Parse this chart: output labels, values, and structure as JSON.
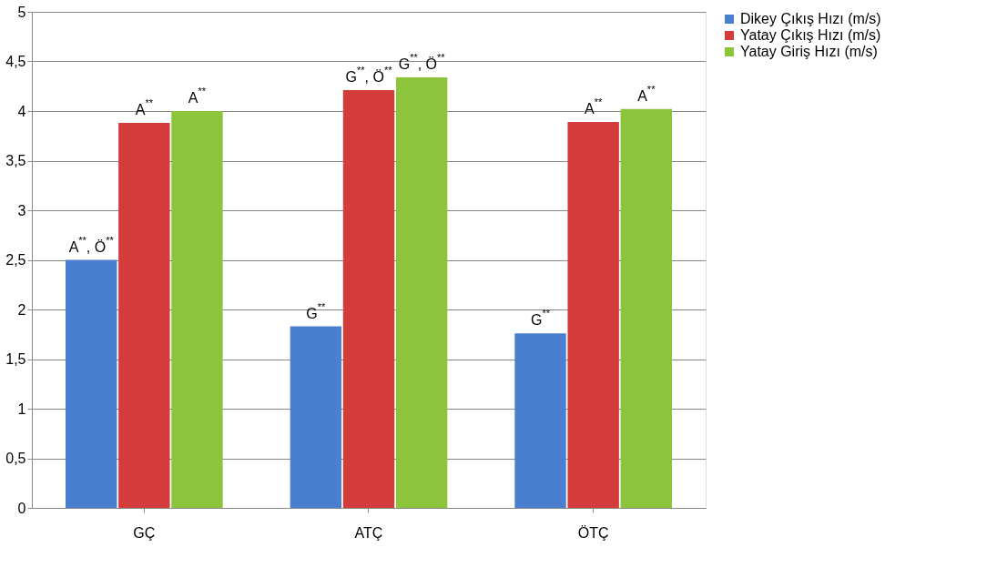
{
  "chart_data": {
    "type": "bar",
    "categories": [
      "GÇ",
      "ATÇ",
      "ÖTÇ"
    ],
    "series": [
      {
        "name": "Dikey Çıkış Hızı (m/s)",
        "color": "#4a7fd0",
        "values": [
          2.5,
          1.83,
          1.76
        ]
      },
      {
        "name": "Yatay Çıkış Hızı (m/s)",
        "color": "#d43c3c",
        "values": [
          3.88,
          4.21,
          3.89
        ]
      },
      {
        "name": "Yatay Giriş Hızı (m/s)",
        "color": "#8cc43c",
        "values": [
          4.0,
          4.34,
          4.02
        ]
      }
    ],
    "ylim": [
      0,
      5
    ],
    "yticks": [
      0,
      {
        "value": 0.5,
        "label": "0,5"
      },
      1,
      {
        "value": 1.5,
        "label": "1,5"
      },
      2,
      {
        "value": 2.5,
        "label": "2,5"
      },
      3,
      {
        "value": 3.5,
        "label": "3,5"
      },
      4,
      {
        "value": 4.5,
        "label": "4,5"
      },
      5
    ],
    "annotations": [
      "A$^{**}$, Ö$^{**}$",
      "A$^{**}$",
      "A$^{**}$",
      "G$^{**}$",
      "G$^{**}$, Ö$^{**}$",
      "G$^{**}$, Ö$^{**}$",
      "G$^{**}$",
      "A$^{**}$",
      "A$^{**}$"
    ],
    "grid": "y",
    "legend": "right"
  }
}
